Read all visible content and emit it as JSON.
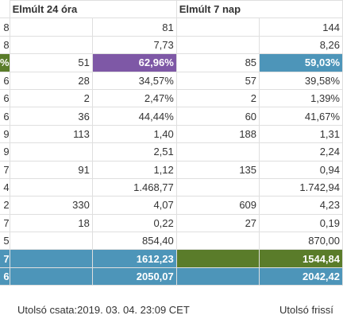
{
  "headers": {
    "col0": "",
    "period1": "Elmúlt 24 óra",
    "period2": "Elmúlt 7 nap"
  },
  "rows": [
    {
      "c0": "8",
      "a": "",
      "b": "81",
      "c": "",
      "d": "144"
    },
    {
      "c0": "8",
      "a": "",
      "b": "7,73",
      "c": "",
      "d": "8,26"
    },
    {
      "c0": "%",
      "a": "51",
      "b": "62,96%",
      "c": "85",
      "d": "59,03%"
    },
    {
      "c0": "6",
      "a": "28",
      "b": "34,57%",
      "c": "57",
      "d": "39,58%"
    },
    {
      "c0": "6",
      "a": "2",
      "b": "2,47%",
      "c": "2",
      "d": "1,39%"
    },
    {
      "c0": "6",
      "a": "36",
      "b": "44,44%",
      "c": "60",
      "d": "41,67%"
    },
    {
      "c0": "9",
      "a": "113",
      "b": "1,40",
      "c": "188",
      "d": "1,31"
    },
    {
      "c0": "9",
      "a": "",
      "b": "2,51",
      "c": "",
      "d": "2,24"
    },
    {
      "c0": "7",
      "a": "91",
      "b": "1,12",
      "c": "135",
      "d": "0,94"
    },
    {
      "c0": "4",
      "a": "",
      "b": "1.468,77",
      "c": "",
      "d": "1.742,94"
    },
    {
      "c0": "2",
      "a": "330",
      "b": "4,07",
      "c": "609",
      "d": "4,23"
    },
    {
      "c0": "7",
      "a": "18",
      "b": "0,22",
      "c": "27",
      "d": "0,19"
    },
    {
      "c0": "5",
      "a": "",
      "b": "854,40",
      "c": "",
      "d": "870,00"
    },
    {
      "c0": "7",
      "a": "",
      "b": "1612,23",
      "c": "",
      "d": "1544,84"
    },
    {
      "c0": "6",
      "a": "",
      "b": "2050,07",
      "c": "",
      "d": "2042,42"
    }
  ],
  "footer": {
    "last_battle": "Utolsó csata:2019. 03. 04. 23:09 CET",
    "last_refresh": "Utolsó frissí"
  },
  "colors": {
    "purple": "#7e58a6",
    "blue": "#4d95b9",
    "green": "#5a7c2a"
  }
}
